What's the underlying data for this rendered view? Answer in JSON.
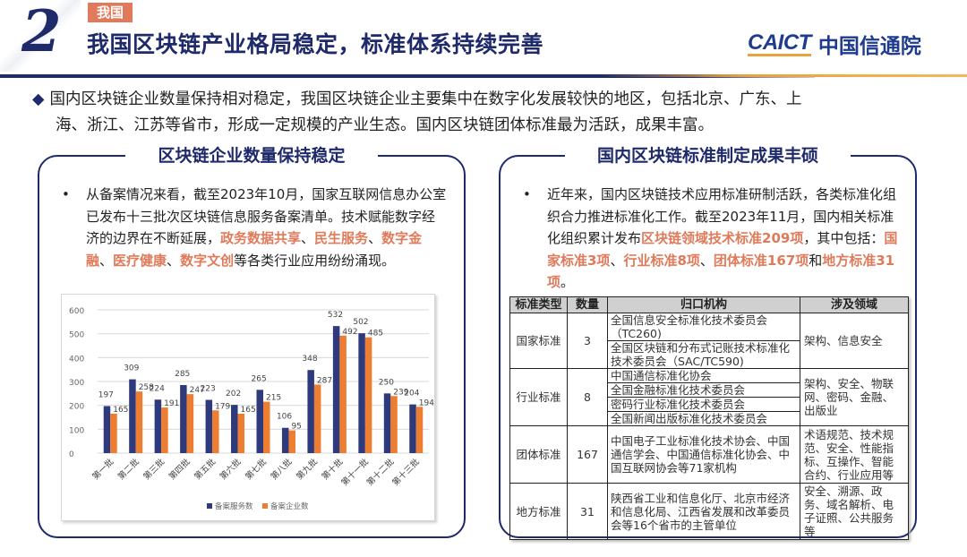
{
  "header": {
    "section_number": "2",
    "tag": "我国",
    "title": "我国区块链产业格局稳定，标准体系持续完善",
    "logo_en": "CAICT",
    "logo_cn": "中国信通院"
  },
  "summary": {
    "bullet_icon": "◆",
    "line1": "国内区块链企业数量保持相对稳定，我国区块链企业主要集中在数字化发展较快的地区，包括北京、广东、上",
    "line2": "海、浙江、江苏等省市，形成一定规模的产业生态。国内区块链团体标准最为活跃，成果丰富。"
  },
  "left_panel": {
    "title": "区块链企业数量保持稳定",
    "bullet_dot": "•",
    "text_1": "从备案情况来看，截至2023年10月，国家互联网信息办公室已发布十三批次区块链信息服务备案清单。技术赋能数字经济的边界在不断延展，",
    "hl_1": "政务数据共享",
    "sep_1": "、",
    "hl_2": "民生服务",
    "sep_2": "、",
    "hl_3": "数字金融",
    "sep_3": "、",
    "hl_4": "医疗健康",
    "sep_4": "、",
    "hl_5": "数字文创",
    "text_2": "等各类行业应用纷纷涌现。"
  },
  "right_panel": {
    "title": "国内区块链标准制定成果丰硕",
    "bullet_dot": "•",
    "text_1": "近年来，国内区块链技术应用标准研制活跃，各类标准化组织合力推进标准化工作。截至2023年11月，国内相关标准化组织累计发布",
    "hl_1": "区块链领域技术标准209项",
    "text_2": "，其中包括：",
    "hl_2": "国家标准3项",
    "sep_1": "、",
    "hl_3": "行业标准8项",
    "sep_2": "、",
    "hl_4": "团体标准167项",
    "text_3": "和",
    "hl_5": "地方标准31项",
    "text_4": "。",
    "table": {
      "headers": [
        "标准类型",
        "数量",
        "归口机构",
        "涉及领域"
      ],
      "rows": [
        {
          "type": "国家标准",
          "count": "3",
          "orgs": [
            "全国信息安全标准化技术委员会（TC260)",
            "全国区块链和分布式记账技术标准化技术委员会（SAC/TC590)"
          ],
          "fields": "架构、信息安全"
        },
        {
          "type": "行业标准",
          "count": "8",
          "orgs": [
            "中国通信标准化协会",
            "全国金融标准化技术委员会",
            "密码行业标准化技术委员会",
            "全国新闻出版标准化技术委员会"
          ],
          "fields": "架构、安全、物联网、密码、金融、出版业"
        },
        {
          "type": "团体标准",
          "count": "167",
          "orgs": [
            "中国电子工业标准化技术协会、中国通信学会、中国通信标准化协会、中国互联网协会等71家机构"
          ],
          "fields": "术语规范、技术规范、安全、性能指标、互操作、智能合约、行业应用等"
        },
        {
          "type": "地方标准",
          "count": "31",
          "orgs": [
            "陕西省工业和信息化厅、北京市经济和信息化局、江西省发展和改革委员会等16个省市的主管单位"
          ],
          "fields": "安全、溯源、政务、域名解析、电子证照、公共服务等"
        }
      ]
    }
  },
  "colors": {
    "navy": "#2e3a7c",
    "orange": "#ed7d31",
    "title_blue": "#1f2a6b",
    "highlight": "#e07a5a"
  },
  "chart_data": {
    "type": "bar",
    "title": "",
    "xlabel": "",
    "ylabel": "",
    "ylim": [
      0,
      600
    ],
    "yticks": [
      0,
      100,
      200,
      300,
      400,
      500,
      600
    ],
    "grid": true,
    "legend_position": "bottom",
    "categories": [
      "第一批",
      "第二批",
      "第三批",
      "第四批",
      "第五批",
      "第六批",
      "第七批",
      "第八批",
      "第九批",
      "第十批",
      "第十一批",
      "第十二批",
      "第十三批"
    ],
    "series": [
      {
        "name": "备案服务数",
        "color": "#2e3a7c",
        "values": [
          197,
          309,
          224,
          285,
          223,
          202,
          265,
          106,
          348,
          532,
          502,
          250,
          204
        ]
      },
      {
        "name": "备案企业数",
        "color": "#ed7d31",
        "values": [
          165,
          258,
          191,
          247,
          179,
          165,
          215,
          95,
          287,
          492,
          485,
          239,
          194
        ]
      }
    ]
  }
}
